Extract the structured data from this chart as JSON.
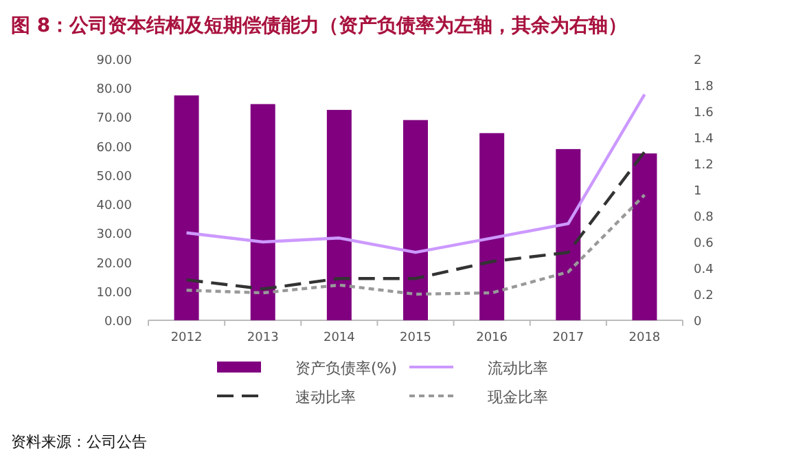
{
  "chart_data": {
    "type": "bar",
    "title": "图 8：公司资本结构及短期偿债能力（资产负债率为左轴，其余为右轴）",
    "categories": [
      "2012",
      "2013",
      "2014",
      "2015",
      "2016",
      "2017",
      "2018"
    ],
    "series": [
      {
        "name": "资产负债率(%)",
        "color": "#800080",
        "values": [
          77.5,
          74.5,
          72.5,
          69,
          64.5,
          59,
          57.5
        ]
      },
      {
        "name": "流动比率",
        "type": "line",
        "axis": "y2",
        "color": "#cc99ff",
        "line_style": "solid",
        "values": [
          0.67,
          0.6,
          0.63,
          0.52,
          0.63,
          0.74,
          1.73
        ]
      },
      {
        "name": "速动比率",
        "type": "line",
        "axis": "y2",
        "color": "#333333",
        "line_style": "dashed",
        "values": [
          0.31,
          0.24,
          0.32,
          0.32,
          0.45,
          0.52,
          1.29
        ]
      },
      {
        "name": "现金比率",
        "type": "line",
        "axis": "y2",
        "color": "#999999",
        "line_style": "dotted",
        "values": [
          0.23,
          0.21,
          0.27,
          0.2,
          0.21,
          0.37,
          0.96
        ]
      }
    ],
    "ylim": [
      0,
      90
    ],
    "yticks": [
      {
        "value": 0,
        "label": "0.00"
      },
      {
        "value": 10,
        "label": "10.00"
      },
      {
        "value": 20,
        "label": "20.00"
      },
      {
        "value": 30,
        "label": "30.00"
      },
      {
        "value": 40,
        "label": "40.00"
      },
      {
        "value": 50,
        "label": "50.00"
      },
      {
        "value": 60,
        "label": "60.00"
      },
      {
        "value": 70,
        "label": "70.00"
      },
      {
        "value": 80,
        "label": "80.00"
      },
      {
        "value": 90,
        "label": "90.00"
      }
    ],
    "y2lim": [
      0,
      2
    ],
    "y2ticks": [
      0,
      0.2,
      0.4,
      0.6,
      0.8,
      1,
      1.2,
      1.4,
      1.6,
      1.8,
      2
    ],
    "grid": false,
    "legend": "bottom",
    "annotations": [
      "资料来源：公司公告"
    ]
  }
}
